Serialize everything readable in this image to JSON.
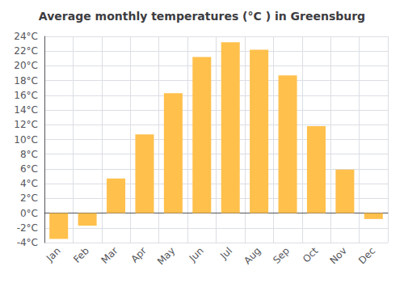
{
  "chart_data": {
    "type": "bar",
    "title": "Average monthly temperatures (°C ) in Greensburg",
    "categories": [
      "Jan",
      "Feb",
      "Mar",
      "Apr",
      "May",
      "Jun",
      "Jul",
      "Aug",
      "Sep",
      "Oct",
      "Nov",
      "Dec"
    ],
    "values": [
      -3.5,
      -1.7,
      4.7,
      10.7,
      16.3,
      21.2,
      23.2,
      22.2,
      18.7,
      11.8,
      5.9,
      -0.8
    ],
    "color": "#FFC04C",
    "ylim": [
      -4,
      24
    ],
    "yticks": [
      {
        "value": -4,
        "label": "-4°C"
      },
      {
        "value": -2,
        "label": "-2°C"
      },
      {
        "value": 0,
        "label": "0°C"
      },
      {
        "value": 2,
        "label": "2°C"
      },
      {
        "value": 4,
        "label": "4°C"
      },
      {
        "value": 6,
        "label": "6°C"
      },
      {
        "value": 8,
        "label": "8°C"
      },
      {
        "value": 10,
        "label": "10°C"
      },
      {
        "value": 12,
        "label": "12°C"
      },
      {
        "value": 14,
        "label": "14°C"
      },
      {
        "value": 16,
        "label": "16°C"
      },
      {
        "value": 18,
        "label": "18°C"
      },
      {
        "value": 20,
        "label": "20°C"
      },
      {
        "value": 22,
        "label": "22°C"
      },
      {
        "value": 24,
        "label": "24°C"
      }
    ],
    "grid": true
  }
}
